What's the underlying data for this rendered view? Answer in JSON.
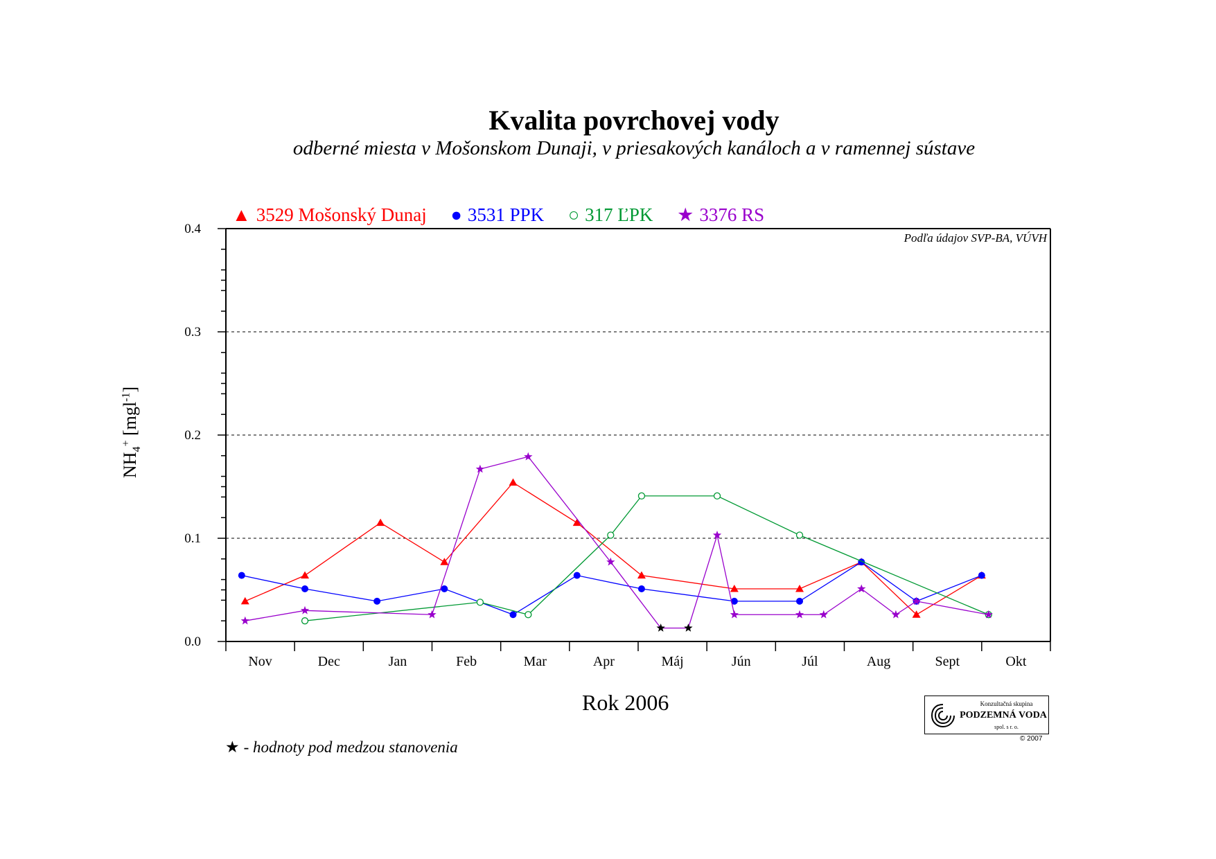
{
  "title": "Kvalita povrchovej vody",
  "subtitle": "odberné miesta v Mošonskom Dunaji, v priesakových kanáloch a v ramennej sústave",
  "source_note": "Podľa údajov SVP-BA, VÚVH",
  "footnote": {
    "symbol": "★",
    "text": "- hodnoty pod medzou stanovenia"
  },
  "logo": {
    "top": "Konzultačná skupina",
    "name": "PODZEMNÁ VODA",
    "sub": "spol. s r. o.",
    "copyright": "© 2007",
    "icon": "spiral-logo-icon"
  },
  "chart_data": {
    "type": "line",
    "xlabel": "Rok 2006",
    "ylabel": {
      "base": "NH",
      "sub": "4",
      "sup": "+",
      "unit": "[mgl",
      "unit_sup": "-1",
      "close": "]"
    },
    "categories": [
      "Nov",
      "Dec",
      "Jan",
      "Feb",
      "Mar",
      "Apr",
      "Máj",
      "Jún",
      "Júl",
      "Aug",
      "Sept",
      "Okt"
    ],
    "ylim": [
      0,
      0.4
    ],
    "yticks": [
      "0.0",
      "0.1",
      "0.2",
      "0.3",
      "0.4"
    ],
    "ytick_values": [
      0,
      0.1,
      0.2,
      0.3,
      0.4
    ],
    "grid": "dashed horizontal at 0.1, 0.2, 0.3",
    "legend_placement": "top, above plot",
    "series": [
      {
        "name": "3529 Mošonský Dunaj",
        "color": "#ff0000",
        "marker": "triangle",
        "legend_symbol": "▲",
        "points": [
          [
            0.28,
            0.039
          ],
          [
            1.15,
            0.064
          ],
          [
            2.25,
            0.115
          ],
          [
            3.18,
            0.077
          ],
          [
            4.18,
            0.154
          ],
          [
            5.11,
            0.115
          ],
          [
            6.05,
            0.064
          ],
          [
            7.4,
            0.051
          ],
          [
            8.35,
            0.051
          ],
          [
            9.25,
            0.077
          ],
          [
            10.05,
            0.026
          ],
          [
            11.0,
            0.064
          ]
        ]
      },
      {
        "name": "3531 PPK",
        "color": "#0000ff",
        "marker": "circle",
        "legend_symbol": "●",
        "points": [
          [
            0.23,
            0.064
          ],
          [
            1.15,
            0.051
          ],
          [
            2.2,
            0.039
          ],
          [
            3.18,
            0.051
          ],
          [
            4.18,
            0.026
          ],
          [
            5.11,
            0.064
          ],
          [
            6.05,
            0.051
          ],
          [
            7.4,
            0.039
          ],
          [
            8.35,
            0.039
          ],
          [
            9.25,
            0.077
          ],
          [
            10.05,
            0.039
          ],
          [
            11.0,
            0.064
          ]
        ]
      },
      {
        "name": "317 ĽPK",
        "color": "#009933",
        "marker": "open-circle",
        "legend_symbol": "○",
        "points": [
          [
            1.15,
            0.02
          ],
          [
            3.7,
            0.038
          ],
          [
            4.4,
            0.026
          ],
          [
            5.6,
            0.103
          ],
          [
            6.05,
            0.141
          ],
          [
            7.15,
            0.141
          ],
          [
            8.35,
            0.103
          ],
          [
            11.1,
            0.026
          ]
        ]
      },
      {
        "name": "3376 RS",
        "color": "#9900cc",
        "marker": "star",
        "legend_symbol": "★",
        "points": [
          [
            0.28,
            0.02
          ],
          [
            1.15,
            0.03
          ],
          [
            3.0,
            0.026
          ],
          [
            3.7,
            0.167
          ],
          [
            4.4,
            0.179
          ],
          [
            5.6,
            0.077
          ],
          [
            6.33,
            0.013
          ],
          [
            6.73,
            0.013
          ],
          [
            7.15,
            0.103
          ],
          [
            7.4,
            0.026
          ],
          [
            8.35,
            0.026
          ],
          [
            8.7,
            0.026
          ],
          [
            9.25,
            0.051
          ],
          [
            9.75,
            0.026
          ],
          [
            10.05,
            0.039
          ],
          [
            11.1,
            0.026
          ]
        ],
        "below_detection_limit": [
          [
            6.33,
            0.013
          ],
          [
            6.73,
            0.013
          ]
        ]
      }
    ],
    "annotations": [
      "Podľa údajov SVP-BA, VÚVH",
      "★ - hodnoty pod medzou stanovenia"
    ]
  }
}
